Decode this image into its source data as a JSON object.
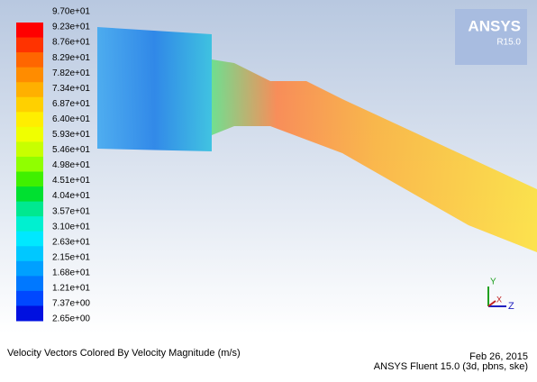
{
  "logo": {
    "brand": "ANSYS",
    "release": "R15.0"
  },
  "legend": {
    "labels": [
      "9.70e+01",
      "9.23e+01",
      "8.76e+01",
      "8.29e+01",
      "7.82e+01",
      "7.34e+01",
      "6.87e+01",
      "6.40e+01",
      "5.93e+01",
      "5.46e+01",
      "4.98e+01",
      "4.51e+01",
      "4.04e+01",
      "3.57e+01",
      "3.10e+01",
      "2.63e+01",
      "2.15e+01",
      "1.68e+01",
      "1.21e+01",
      "7.37e+00",
      "2.65e+00"
    ],
    "colors": [
      "#ff0000",
      "#ff3300",
      "#ff6600",
      "#ff8c00",
      "#ffb000",
      "#ffd000",
      "#ffee00",
      "#f0ff00",
      "#c8ff00",
      "#90ff00",
      "#40f000",
      "#00e030",
      "#00e890",
      "#00f0d0",
      "#00e8ff",
      "#00c8ff",
      "#00a0ff",
      "#0078ff",
      "#0048ff",
      "#0010e0"
    ]
  },
  "triad": {
    "y": "Y",
    "x": "X",
    "z": "Z"
  },
  "footer": {
    "caption": "Velocity Vectors Colored By Velocity Magnitude (m/s)",
    "date": "Feb 26, 2015",
    "software": "ANSYS Fluent 15.0 (3d, pbns, ske)"
  }
}
